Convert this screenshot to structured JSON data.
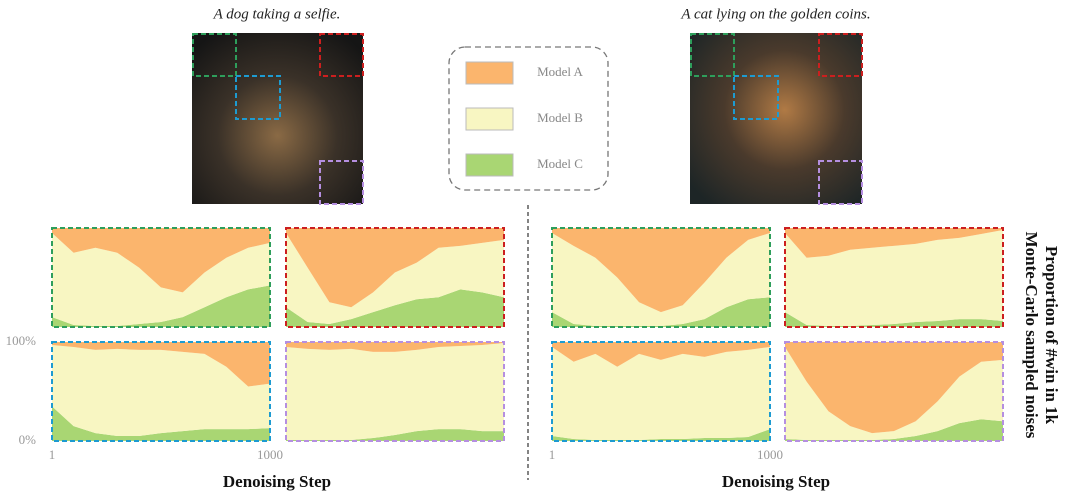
{
  "captions": [
    "A dog taking a selfie.",
    "A cat lying on the golden coins."
  ],
  "x_label": "Denoising Step",
  "y_label": [
    "Proportion of #win in 1k",
    "Monte-Carlo sampled noises"
  ],
  "chart_data": [
    {
      "type": "stacked_area",
      "border_color": "#2e9e5b",
      "xlim": [
        1,
        1000
      ],
      "ylim": [
        0,
        100
      ],
      "x": [
        1,
        100,
        200,
        300,
        400,
        500,
        600,
        700,
        800,
        900,
        1000
      ],
      "series": [
        {
          "name": "Model C",
          "color": "#a9d673",
          "values": [
            10,
            2,
            1,
            1,
            3,
            5,
            10,
            20,
            30,
            38,
            42
          ]
        },
        {
          "name": "Model B",
          "color": "#f8f6c2",
          "values": [
            85,
            73,
            79,
            74,
            57,
            35,
            25,
            35,
            40,
            42,
            43
          ]
        },
        {
          "name": "Model A",
          "color": "#fbb56d",
          "values": [
            5,
            25,
            20,
            25,
            40,
            60,
            65,
            45,
            30,
            20,
            15
          ]
        }
      ]
    },
    {
      "type": "stacked_area",
      "border_color": "#cc1f1f",
      "xlim": [
        1,
        1000
      ],
      "ylim": [
        0,
        100
      ],
      "x": [
        1,
        100,
        200,
        300,
        400,
        500,
        600,
        700,
        800,
        900,
        1000
      ],
      "series": [
        {
          "name": "Model C",
          "color": "#a9d673",
          "values": [
            20,
            5,
            3,
            8,
            15,
            22,
            28,
            30,
            38,
            35,
            30
          ]
        },
        {
          "name": "Model B",
          "color": "#f8f6c2",
          "values": [
            75,
            55,
            22,
            12,
            20,
            33,
            37,
            50,
            44,
            50,
            58
          ]
        },
        {
          "name": "Model A",
          "color": "#fbb56d",
          "values": [
            5,
            40,
            75,
            80,
            65,
            45,
            35,
            20,
            18,
            15,
            12
          ]
        }
      ]
    },
    {
      "type": "stacked_area",
      "border_color": "#1d9bd1",
      "xlim": [
        1,
        1000
      ],
      "ylim": [
        0,
        100
      ],
      "xticks": [
        1,
        1000
      ],
      "yticks": [
        {
          "value": 0,
          "label": "0%"
        },
        {
          "value": 100,
          "label": "100%"
        }
      ],
      "x": [
        1,
        100,
        200,
        300,
        400,
        500,
        600,
        700,
        800,
        900,
        1000
      ],
      "series": [
        {
          "name": "Model C",
          "color": "#a9d673",
          "values": [
            35,
            15,
            8,
            5,
            5,
            8,
            10,
            12,
            12,
            12,
            13
          ]
        },
        {
          "name": "Model B",
          "color": "#f8f6c2",
          "values": [
            62,
            80,
            84,
            88,
            87,
            84,
            80,
            76,
            63,
            43,
            45
          ]
        },
        {
          "name": "Model A",
          "color": "#fbb56d",
          "values": [
            3,
            5,
            8,
            7,
            8,
            8,
            10,
            12,
            25,
            45,
            42
          ]
        }
      ]
    },
    {
      "type": "stacked_area",
      "border_color": "#b58fe0",
      "xlim": [
        1,
        1000
      ],
      "ylim": [
        0,
        100
      ],
      "x": [
        1,
        100,
        200,
        300,
        400,
        500,
        600,
        700,
        800,
        900,
        1000
      ],
      "series": [
        {
          "name": "Model C",
          "color": "#a9d673",
          "values": [
            1,
            1,
            1,
            1,
            3,
            6,
            10,
            12,
            12,
            10,
            10
          ]
        },
        {
          "name": "Model B",
          "color": "#f8f6c2",
          "values": [
            94,
            92,
            91,
            92,
            87,
            84,
            82,
            83,
            84,
            87,
            89
          ]
        },
        {
          "name": "Model A",
          "color": "#fbb56d",
          "values": [
            5,
            7,
            8,
            7,
            10,
            10,
            8,
            5,
            4,
            3,
            1
          ]
        }
      ]
    },
    {
      "type": "stacked_area",
      "border_color": "#2e9e5b",
      "xlim": [
        1,
        1000
      ],
      "ylim": [
        0,
        100
      ],
      "x": [
        1,
        100,
        200,
        300,
        400,
        500,
        600,
        700,
        800,
        900,
        1000
      ],
      "series": [
        {
          "name": "Model C",
          "color": "#a9d673",
          "values": [
            15,
            3,
            1,
            1,
            1,
            1,
            3,
            8,
            20,
            28,
            30
          ]
        },
        {
          "name": "Model B",
          "color": "#f8f6c2",
          "values": [
            80,
            79,
            69,
            49,
            24,
            14,
            19,
            37,
            50,
            60,
            65
          ]
        },
        {
          "name": "Model A",
          "color": "#fbb56d",
          "values": [
            5,
            18,
            30,
            50,
            75,
            85,
            78,
            55,
            30,
            12,
            5
          ]
        }
      ]
    },
    {
      "type": "stacked_area",
      "border_color": "#cc1f1f",
      "xlim": [
        1,
        1000
      ],
      "ylim": [
        0,
        100
      ],
      "x": [
        1,
        100,
        200,
        300,
        400,
        500,
        600,
        700,
        800,
        900,
        1000
      ],
      "series": [
        {
          "name": "Model C",
          "color": "#a9d673",
          "values": [
            15,
            2,
            1,
            1,
            2,
            3,
            5,
            6,
            8,
            8,
            6
          ]
        },
        {
          "name": "Model B",
          "color": "#f8f6c2",
          "values": [
            80,
            68,
            71,
            77,
            78,
            79,
            79,
            82,
            82,
            86,
            92
          ]
        },
        {
          "name": "Model A",
          "color": "#fbb56d",
          "values": [
            5,
            30,
            28,
            22,
            20,
            18,
            16,
            12,
            10,
            6,
            2
          ]
        }
      ]
    },
    {
      "type": "stacked_area",
      "border_color": "#1d9bd1",
      "xlim": [
        1,
        1000
      ],
      "ylim": [
        0,
        100
      ],
      "xticks": [
        1,
        1000
      ],
      "x": [
        1,
        100,
        200,
        300,
        400,
        500,
        600,
        700,
        800,
        900,
        1000
      ],
      "series": [
        {
          "name": "Model C",
          "color": "#a9d673",
          "values": [
            5,
            2,
            1,
            1,
            1,
            2,
            2,
            3,
            3,
            4,
            12
          ]
        },
        {
          "name": "Model B",
          "color": "#f8f6c2",
          "values": [
            90,
            78,
            87,
            74,
            87,
            80,
            86,
            82,
            87,
            88,
            83
          ]
        },
        {
          "name": "Model A",
          "color": "#fbb56d",
          "values": [
            5,
            20,
            12,
            25,
            12,
            18,
            12,
            15,
            10,
            8,
            5
          ]
        }
      ]
    },
    {
      "type": "stacked_area",
      "border_color": "#b58fe0",
      "xlim": [
        1,
        1000
      ],
      "ylim": [
        0,
        100
      ],
      "x": [
        1,
        100,
        200,
        300,
        400,
        500,
        600,
        700,
        800,
        900,
        1000
      ],
      "series": [
        {
          "name": "Model C",
          "color": "#a9d673",
          "values": [
            2,
            1,
            1,
            1,
            1,
            2,
            5,
            10,
            18,
            22,
            20
          ]
        },
        {
          "name": "Model B",
          "color": "#f8f6c2",
          "values": [
            93,
            59,
            29,
            14,
            7,
            8,
            15,
            30,
            47,
            58,
            62
          ]
        },
        {
          "name": "Model A",
          "color": "#fbb56d",
          "values": [
            5,
            40,
            70,
            85,
            92,
            90,
            80,
            60,
            35,
            20,
            18
          ]
        }
      ]
    }
  ]
}
